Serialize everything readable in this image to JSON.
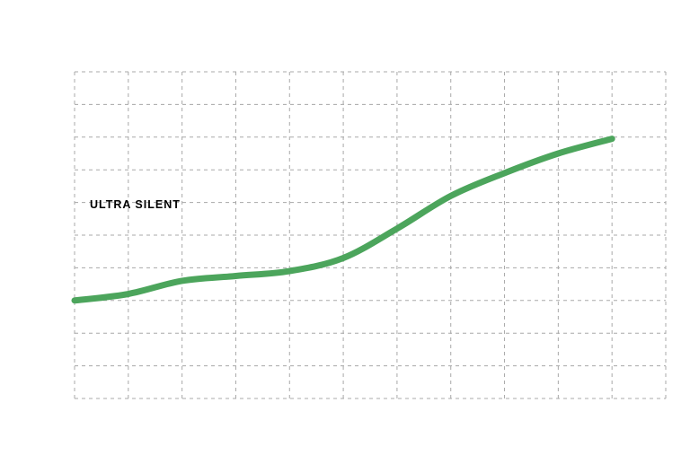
{
  "chart_data": {
    "type": "line",
    "title": "",
    "xlabel": "",
    "ylabel": "",
    "xlim": [
      0,
      11
    ],
    "ylim": [
      0,
      10
    ],
    "grid": true,
    "colors": {
      "series": "#4ca55c",
      "grid": "#a8a8a8",
      "annotation_line": "#ffffff",
      "annotation_text": "#000000"
    },
    "series": [
      {
        "x": [
          0,
          1,
          2,
          3,
          4,
          5,
          6,
          7,
          8,
          9,
          10
        ],
        "values": [
          3.0,
          3.2,
          3.6,
          3.75,
          3.9,
          4.3,
          5.2,
          6.2,
          6.9,
          7.5,
          7.95
        ]
      }
    ],
    "annotations": [
      {
        "text": "ULTRA SILENT",
        "y": 5.95
      }
    ]
  }
}
